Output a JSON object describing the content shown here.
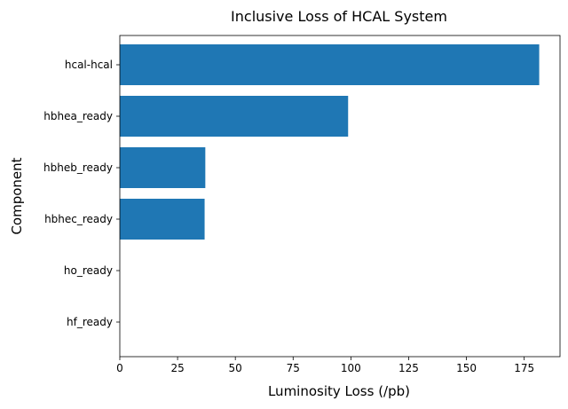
{
  "chart_data": {
    "type": "bar",
    "orientation": "horizontal",
    "title": "Inclusive Loss of HCAL System",
    "xlabel": "Luminosity Loss (/pb)",
    "ylabel": "Component",
    "categories": [
      "hcal-hcal",
      "hbhea_ready",
      "hbheb_ready",
      "hbhec_ready",
      "ho_ready",
      "hf_ready"
    ],
    "values": [
      181.5,
      98.8,
      37.0,
      36.7,
      0,
      0
    ],
    "xlim": [
      0,
      190.5
    ],
    "xticks": [
      0,
      25,
      50,
      75,
      100,
      125,
      150,
      175
    ],
    "grid": false,
    "bar_color": "#1f77b4"
  }
}
